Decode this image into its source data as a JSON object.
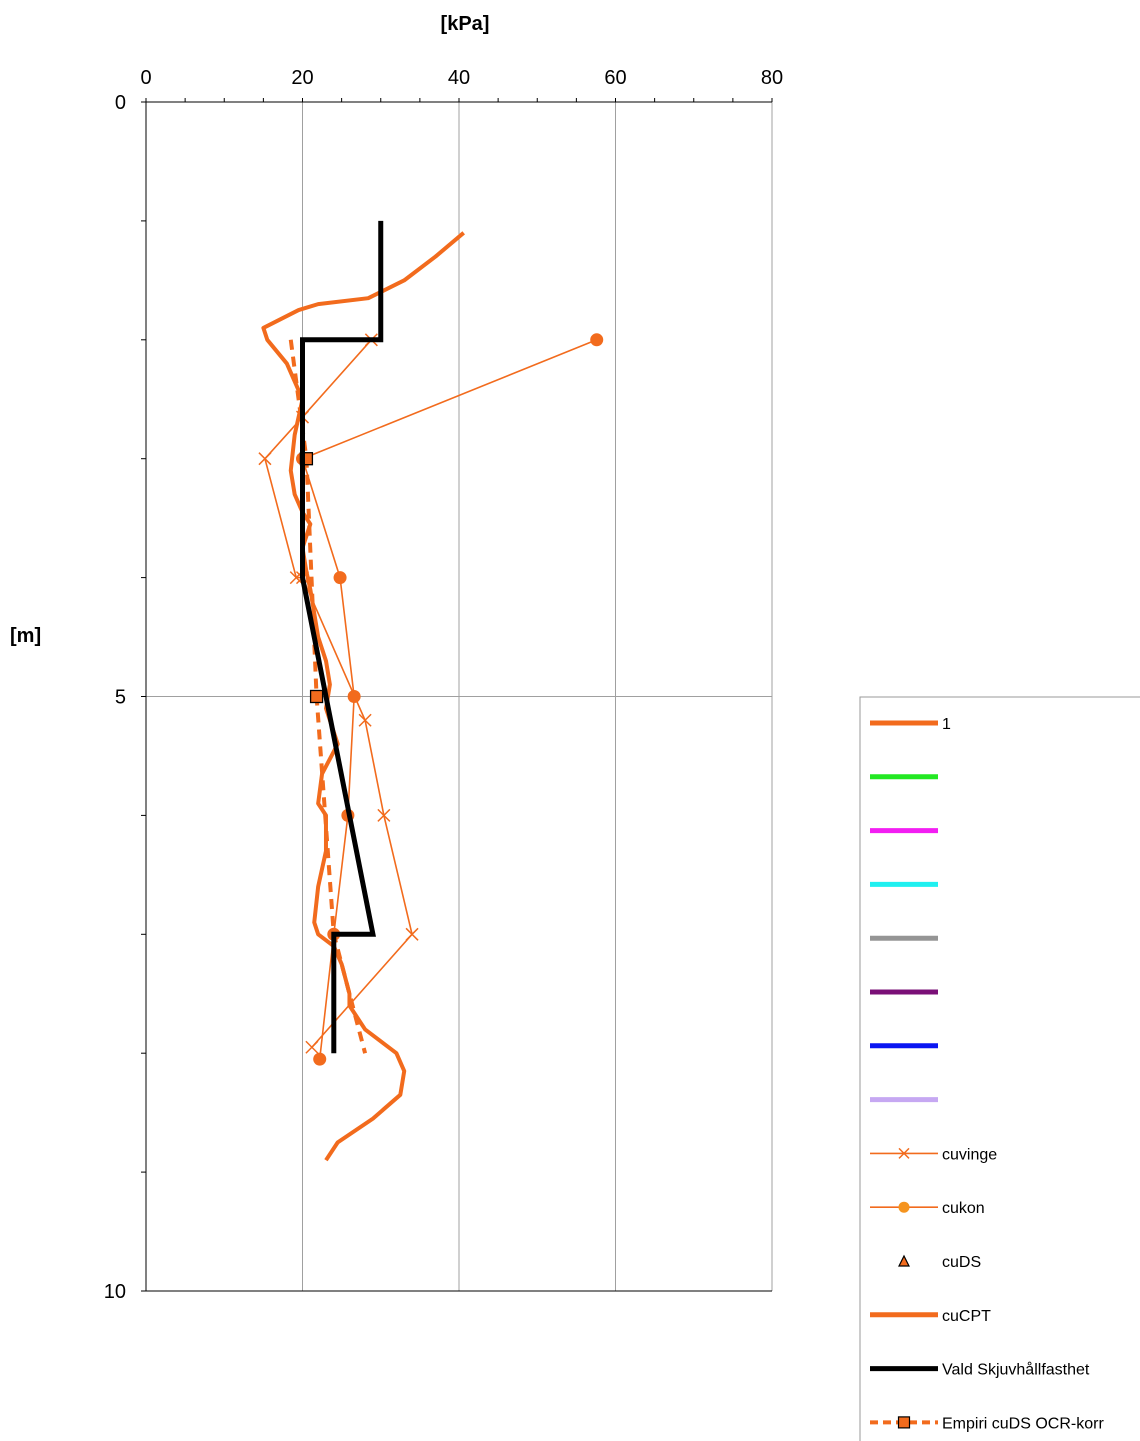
{
  "chart_data": {
    "type": "line",
    "xlabel": "[kPa]",
    "ylabel": "[m]",
    "xlim": [
      0,
      80
    ],
    "ylim": [
      0,
      10
    ],
    "y_reversed": true,
    "x_axis_position": "top",
    "grid": "vertical major lines plus horizontal line at 5",
    "x_ticks": [
      "0",
      "20",
      "40",
      "60",
      "80"
    ],
    "y_ticks": [
      "0",
      "5",
      "10"
    ],
    "legend_position": "bottom-right",
    "series": [
      {
        "name": "1",
        "color": "#f26b1d",
        "style": "thick-line",
        "x": [],
        "y": []
      },
      {
        "name": "",
        "color": "#22e822",
        "style": "thick-line",
        "x": [],
        "y": []
      },
      {
        "name": "",
        "color": "#f21ef2",
        "style": "thick-line",
        "x": [],
        "y": []
      },
      {
        "name": "",
        "color": "#1ff0f0",
        "style": "thick-line",
        "x": [],
        "y": []
      },
      {
        "name": "",
        "color": "#959595",
        "style": "thick-line",
        "x": [],
        "y": []
      },
      {
        "name": "",
        "color": "#7a1077",
        "style": "thick-line",
        "x": [],
        "y": []
      },
      {
        "name": "",
        "color": "#0a16f2",
        "style": "thick-line",
        "x": [],
        "y": []
      },
      {
        "name": "",
        "color": "#c6a8f2",
        "style": "thick-line",
        "x": [],
        "y": []
      },
      {
        "name": "cuvinge",
        "color": "#f26b1d",
        "style": "thin-line-x",
        "x": [
          28.8,
          20.0,
          15.2,
          19.2,
          20.0,
          28.0,
          30.4,
          34.0,
          21.2
        ],
        "y": [
          2.0,
          2.65,
          3.0,
          4.0,
          4.0,
          5.2,
          6.0,
          7.0,
          7.95
        ]
      },
      {
        "name": "cukon",
        "color": "#f26b1d",
        "style": "thin-line-dot",
        "x": [
          57.6,
          20.0,
          24.8,
          26.6,
          25.8,
          24.0,
          22.2
        ],
        "y": [
          2.0,
          3.0,
          4.0,
          5.0,
          6.0,
          7.0,
          8.05
        ]
      },
      {
        "name": "cuDS",
        "color": "#f26b1d",
        "style": "triangle",
        "x": [],
        "y": []
      },
      {
        "name": "cuCPT",
        "color": "#f26b1d",
        "style": "thick-line",
        "x": [
          40.6,
          37.0,
          33.0,
          28.4,
          22.0,
          19.5,
          15.0,
          15.5,
          18.0,
          20.0,
          19.0,
          18.5,
          19.0,
          20.0,
          21.0,
          20.0,
          20.5,
          21.0,
          21.5,
          22.0,
          23.0,
          23.5,
          23.0,
          24.5,
          22.5,
          22.0,
          23.0,
          23.0,
          22.0,
          21.5,
          22.0,
          24.0,
          25.0,
          26.0,
          26.0,
          28.0,
          32.0,
          33.0,
          32.5,
          29.0,
          24.5,
          23.0
        ],
        "y": [
          1.1,
          1.3,
          1.5,
          1.65,
          1.7,
          1.75,
          1.9,
          2.0,
          2.2,
          2.5,
          2.8,
          3.1,
          3.3,
          3.45,
          3.55,
          3.75,
          3.95,
          4.1,
          4.3,
          4.5,
          4.7,
          4.9,
          5.1,
          5.4,
          5.65,
          5.9,
          6.0,
          6.3,
          6.6,
          6.9,
          7.0,
          7.1,
          7.25,
          7.5,
          7.6,
          7.8,
          8.0,
          8.15,
          8.35,
          8.55,
          8.75,
          8.9
        ]
      },
      {
        "name": "Vald Skjuvhållfasthet",
        "color": "#000000",
        "style": "thick-line",
        "x": [
          30,
          30,
          20,
          20,
          20,
          29,
          24,
          24
        ],
        "y": [
          1.0,
          2.0,
          2.0,
          4.0,
          4.0,
          7.0,
          7.0,
          8.0
        ]
      },
      {
        "name": "Empiri cuDS OCR-korr",
        "color": "#f26b1d",
        "style": "dashed-square",
        "x": [
          18.5,
          20.5,
          21.8,
          24.0,
          28.0
        ],
        "y": [
          2.0,
          3.0,
          5.0,
          7.0,
          8.0
        ],
        "markers_x": [
          20.5,
          21.8
        ],
        "markers_y": [
          3.0,
          5.0
        ]
      }
    ]
  }
}
